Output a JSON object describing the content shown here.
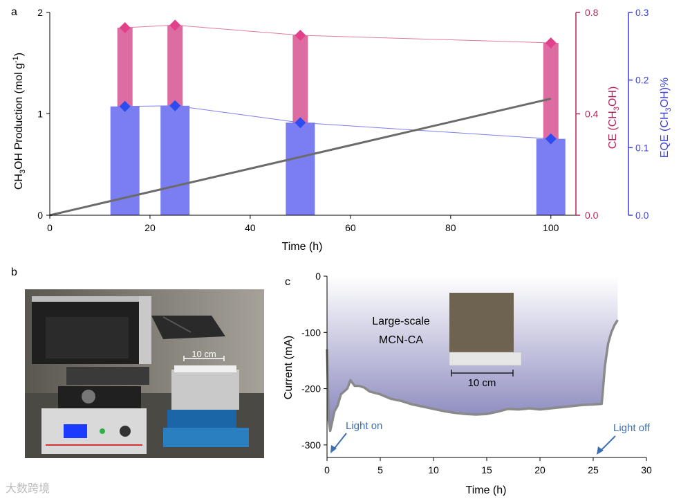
{
  "panels": {
    "a": "a",
    "b": "b",
    "c": "c"
  },
  "colors": {
    "ce": "#b5235b",
    "ce_bar": "#d9609a",
    "eqe": "#3b3fd8",
    "eqe_bar": "#7b7ef0",
    "production": "#6b6b6b"
  },
  "chart_data": [
    {
      "type": "bar",
      "panel": "a",
      "xlabel": "Time (h)",
      "ylabel_left": "CH3OH Production (mol g-1)",
      "ylabel_right1": "CE (CH3OH)",
      "ylabel_right2": "EQE (CH3OH)%",
      "xlim": [
        0,
        105
      ],
      "ylim_left": [
        0,
        2.0
      ],
      "ylim_right1": [
        0,
        0.8
      ],
      "ylim_right2": [
        0,
        0.3
      ],
      "x_ticks": [
        "0",
        "20",
        "40",
        "60",
        "80",
        "100"
      ],
      "y_left_ticks": [
        "0",
        "1",
        "2"
      ],
      "y_right1_ticks": [
        "0.0",
        "0.4",
        "0.8"
      ],
      "y_right2_ticks": [
        "0.0",
        "0.1",
        "0.2",
        "0.3"
      ],
      "series": [
        {
          "axis": "right1",
          "kind": "bar+line",
          "x": [
            15,
            25,
            50,
            100
          ],
          "values": [
            0.74,
            0.75,
            0.71,
            0.68
          ]
        },
        {
          "axis": "right2",
          "kind": "bar+line",
          "x": [
            15,
            25,
            50,
            100
          ],
          "values": [
            0.161,
            0.162,
            0.137,
            0.113
          ]
        },
        {
          "axis": "left",
          "kind": "line",
          "x": [
            0,
            100
          ],
          "values": [
            0.0,
            1.15
          ]
        }
      ]
    },
    {
      "type": "line",
      "panel": "c",
      "xlabel": "Time (h)",
      "ylabel": "Current (mA)",
      "xlim": [
        0,
        30
      ],
      "ylim": [
        -310,
        0
      ],
      "x_ticks": [
        "0",
        "5",
        "10",
        "15",
        "20",
        "25",
        "30"
      ],
      "y_ticks": [
        "0",
        "-100",
        "-200",
        "-300"
      ],
      "x": [
        0,
        0.05,
        0.15,
        0.3,
        0.45,
        0.7,
        1.0,
        1.3,
        1.6,
        1.9,
        2.2,
        2.6,
        3.0,
        3.5,
        4,
        5,
        6,
        7,
        8,
        9,
        10,
        11,
        12,
        13,
        14,
        15,
        16,
        17,
        18,
        19,
        20,
        21,
        22,
        23,
        24,
        25,
        25.8,
        25.9,
        26.1,
        26.4,
        26.7,
        27.0,
        27.3
      ],
      "y": [
        -130,
        -165,
        -255,
        -275,
        -262,
        -240,
        -230,
        -210,
        -205,
        -200,
        -185,
        -195,
        -195,
        -198,
        -205,
        -210,
        -218,
        -222,
        -228,
        -232,
        -236,
        -240,
        -243,
        -245,
        -246,
        -245,
        -241,
        -236,
        -237,
        -235,
        -237,
        -235,
        -233,
        -231,
        -229,
        -228,
        -227,
        -205,
        -160,
        -120,
        -100,
        -87,
        -78
      ],
      "annotations": {
        "light_on": "Light on",
        "light_off": "Light off",
        "inset_line1": "Large-scale",
        "inset_line2": "MCN-CA",
        "inset_scale": "10 cm"
      }
    }
  ],
  "photo_b": {
    "scale_label": "10 cm"
  },
  "watermark": "大数跨境"
}
